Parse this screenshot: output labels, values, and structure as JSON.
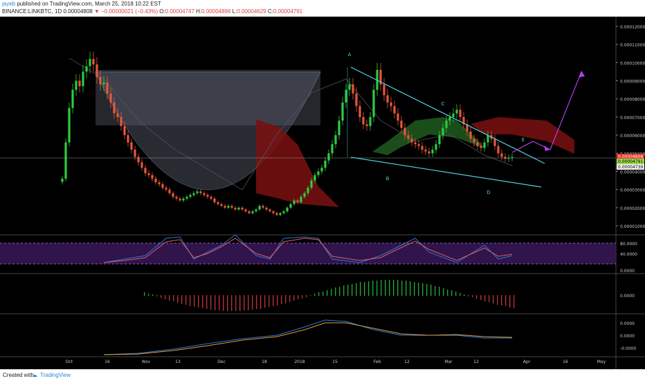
{
  "header": {
    "author": "jayeb",
    "published_text": "published on TradingView.com, March 25, 2018 10:22 EST",
    "symbol": "BINANCE:LINKBTC, 1D",
    "last": "0.00004808",
    "arrow": "▼",
    "change": "−0.00000021 (−0.43%)",
    "o_label": "O:",
    "o": "0.00004747",
    "h_label": "H:",
    "h": "0.00004896",
    "l_label": "L:",
    "l": "0.00004629",
    "c_label": "C:",
    "c": "0.00004791"
  },
  "footer": {
    "created_with": "Created with",
    "brand": "TradingView"
  },
  "colors": {
    "up": "#2ecc40",
    "down": "#e8573b",
    "cyan": "#4fd2de",
    "purple": "#b040e8",
    "cloud_red": "#7a1010",
    "cloud_green": "#1e5a1e"
  },
  "chart_data": {
    "type": "candlestick",
    "symbol": "BINANCE:LINKBTC",
    "timeframe": "1D",
    "x_labels": [
      "Oct",
      "16",
      "Nov",
      "13",
      "Dec",
      "18",
      "2018",
      "15",
      "Feb",
      "12",
      "Mar",
      "12",
      "Apr",
      "16",
      "May"
    ],
    "price_ticks": [
      "0.00012000",
      "0.00011000",
      "0.00010000",
      "0.00009000",
      "0.00008000",
      "0.00007000",
      "0.00006000",
      "0.00005000",
      "0.00004000",
      "0.00003000",
      "0.00002000",
      "0.00001000"
    ],
    "price_labels": [
      {
        "value": "0.00004808",
        "bg": "#e0302a",
        "fg": "#ffffff"
      },
      {
        "value": "0.00004791",
        "bg": "#9bd84a",
        "fg": "#000000"
      },
      {
        "value": "0.00004739",
        "bg": "#f0f0f0",
        "fg": "#000000"
      }
    ],
    "annotations": [
      "A",
      "B",
      "C",
      "D",
      "E"
    ],
    "stoch_ticks": [
      "80.0000",
      "40.0000",
      "0.0000"
    ],
    "hist_ticks": [
      "0.0000"
    ],
    "macd_ticks": [
      "0.0000",
      "0.0000",
      "-0.0000"
    ],
    "closes": [
      3.6e-05,
      5.6e-05,
      7.5e-05,
      8.5e-05,
      9e-05,
      8.7e-05,
      9.5e-05,
      9.8e-05,
      0.000102,
      9.9e-05,
      9.2e-05,
      8.8e-05,
      8.9e-05,
      8.3e-05,
      7.8e-05,
      7.2e-05,
      7e-05,
      6.5e-05,
      6e-05,
      5.6e-05,
      5.2e-05,
      4.8e-05,
      4.5e-05,
      4.2e-05,
      3.9e-05,
      3.8e-05,
      3.6e-05,
      3.4e-05,
      3.3e-05,
      3.1e-05,
      3e-05,
      2.8e-05,
      2.6e-05,
      2.5e-05,
      2.4e-05,
      2.5e-05,
      2.6e-05,
      2.7e-05,
      2.8e-05,
      2.9e-05,
      2.8e-05,
      2.7e-05,
      2.6e-05,
      2.5e-05,
      2.3e-05,
      2.2e-05,
      2.1e-05,
      2e-05,
      2.1e-05,
      2e-05,
      1.9e-05,
      2e-05,
      1.9e-05,
      1.8e-05,
      1.7e-05,
      1.8e-05,
      1.9e-05,
      2.1e-05,
      2e-05,
      1.9e-05,
      1.8e-05,
      1.7e-05,
      1.6e-05,
      1.7e-05,
      1.8e-05,
      2e-05,
      2.2e-05,
      2.4e-05,
      2.3e-05,
      2.6e-05,
      2.8e-05,
      3.1e-05,
      3.5e-05,
      3.8e-05,
      4e-05,
      4.2e-05,
      4.6e-05,
      5e-05,
      5.5e-05,
      6e-05,
      6.8e-05,
      7.8e-05,
      8.5e-05,
      8.8e-05,
      8.3e-05,
      7.6e-05,
      7e-05,
      6.6e-05,
      6.5e-05,
      7e-05,
      8.5e-05,
      9.6e-05,
      8.8e-05,
      8.2e-05,
      7.8e-05,
      7.6e-05,
      7.2e-05,
      6.8e-05,
      6.4e-05,
      6e-05,
      5.8e-05,
      5.6e-05,
      5.5e-05,
      5.4e-05,
      5.2e-05,
      5.1e-05,
      5e-05,
      5.2e-05,
      5.5e-05,
      6e-05,
      6.4e-05,
      6.8e-05,
      7e-05,
      7.2e-05,
      7.4e-05,
      7e-05,
      6.6e-05,
      6.2e-05,
      5.8e-05,
      5.6e-05,
      5.4e-05,
      5.3e-05,
      5.6e-05,
      6e-05,
      5.8e-05,
      5.4e-05,
      5e-05,
      4.8e-05,
      4.7e-05,
      4.75e-05,
      4.79e-05
    ]
  }
}
